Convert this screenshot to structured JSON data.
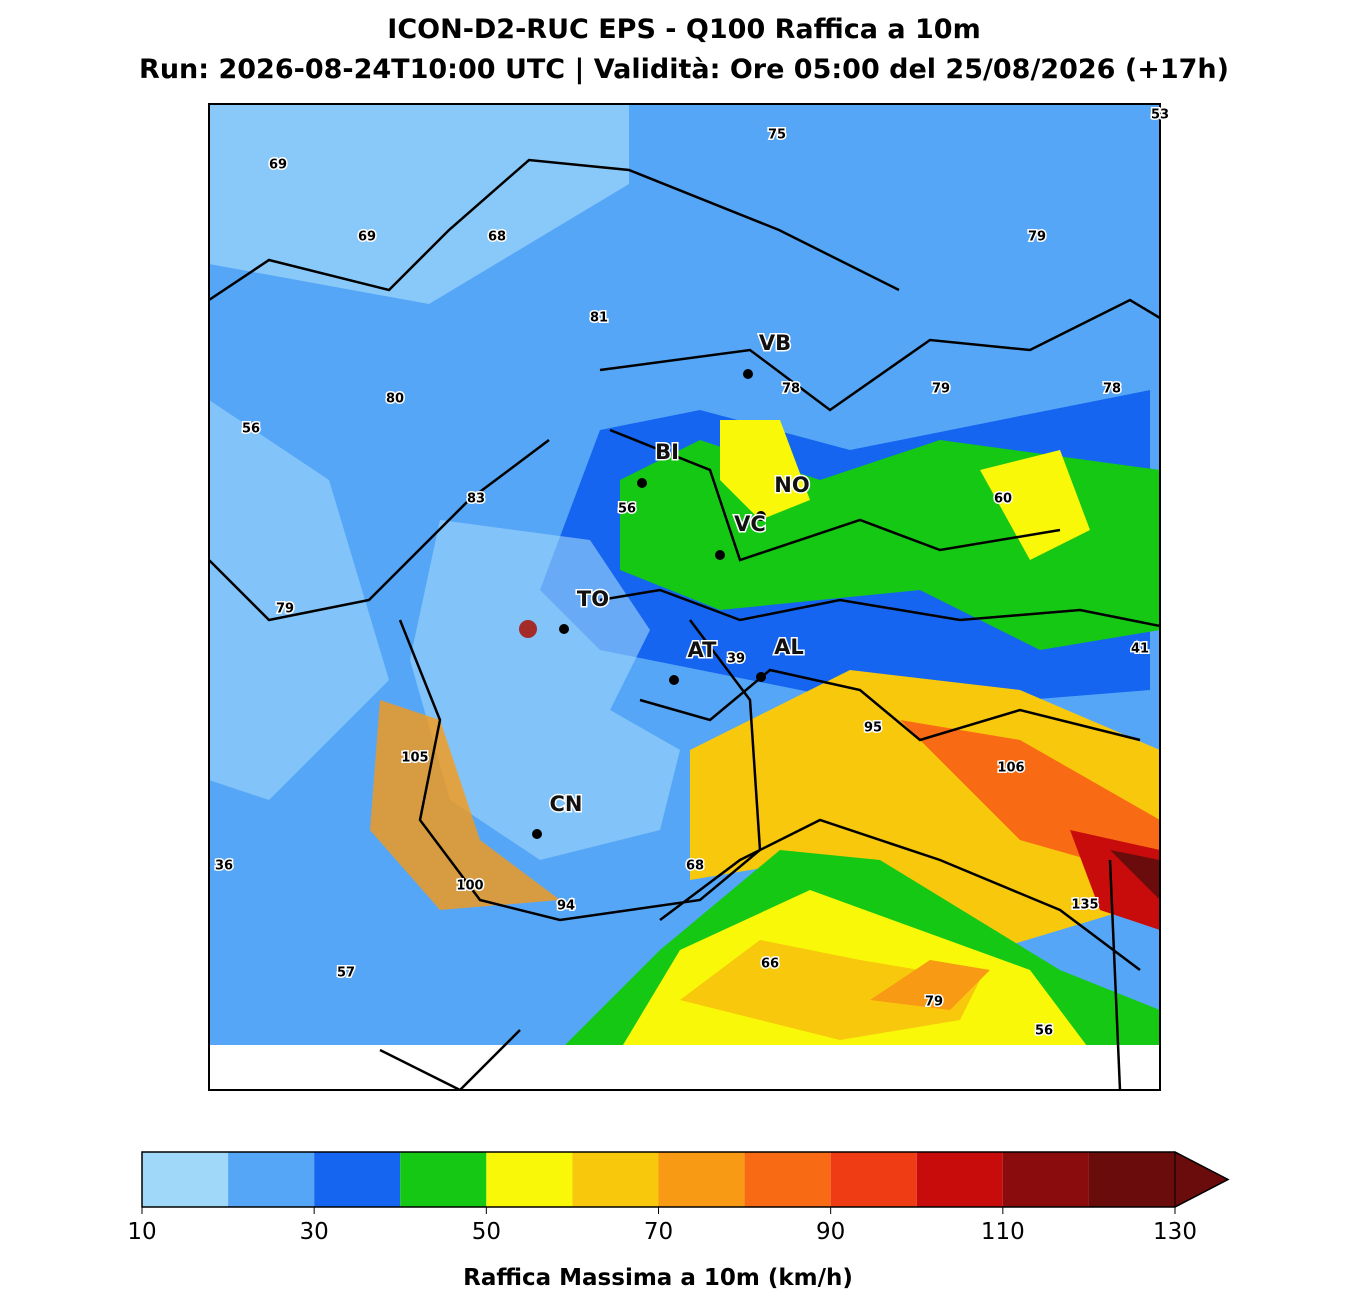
{
  "title": "ICON-D2-RUC EPS - Q100 Raffica a 10m",
  "subtitle": "Run: 2026-08-24T10:00 UTC | Validità: Ore 05:00 del 25/08/2026 (+17h)",
  "cities": [
    "VB",
    "BI",
    "NO",
    "VC",
    "TO",
    "AT",
    "AL",
    "CN"
  ],
  "value_labels": [
    53,
    75,
    69,
    69,
    68,
    79,
    81,
    78,
    79,
    78,
    80,
    56,
    83,
    56,
    60,
    79,
    41,
    39,
    95,
    105,
    106,
    36,
    68,
    100,
    94,
    135,
    66,
    79,
    57,
    56
  ],
  "colorbar": {
    "levels": [
      10,
      20,
      30,
      40,
      50,
      60,
      70,
      80,
      90,
      100,
      110,
      120,
      130
    ],
    "colors": [
      "#a0d8fa",
      "#56a6f7",
      "#1565f0",
      "#14c814",
      "#f8f808",
      "#f8c80c",
      "#f89a14",
      "#f86a14",
      "#f03c14",
      "#c80c0c",
      "#8a0c0c",
      "#6a0c0c"
    ],
    "ticks": [
      10,
      30,
      50,
      70,
      90,
      110,
      130
    ],
    "label": "Raffica Massima a 10m (km/h)"
  }
}
